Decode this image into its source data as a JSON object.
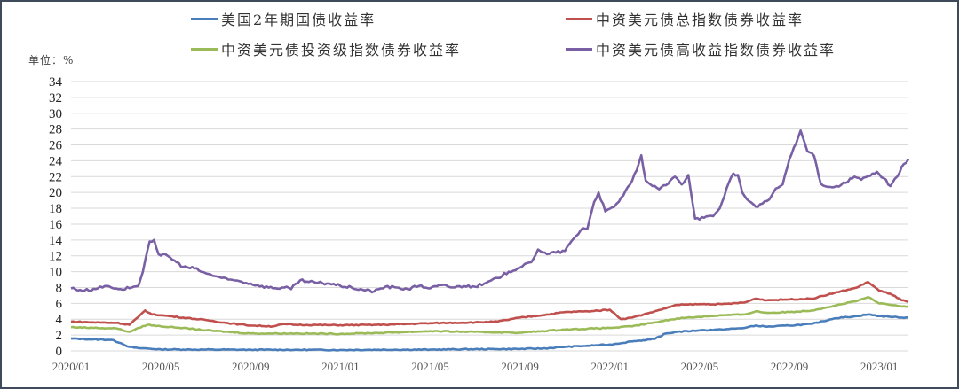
{
  "unit_label": "单位：%",
  "legend": [
    {
      "label": "美国2年期国债收益率",
      "color": "#4a7ebb"
    },
    {
      "label": "中资美元债总指数债券收益率",
      "color": "#c0504d"
    },
    {
      "label": "中资美元债投资级指数债券收益率",
      "color": "#9bbb59"
    },
    {
      "label": "中资美元债高收益指数债券收益率",
      "color": "#7960a4"
    }
  ],
  "chart_data": {
    "type": "line",
    "title": "",
    "xlabel": "",
    "ylabel": "单位：%",
    "ylim": [
      0,
      34
    ],
    "yticks": [
      0,
      2,
      4,
      6,
      8,
      10,
      12,
      14,
      16,
      18,
      20,
      22,
      24,
      26,
      28,
      30,
      32,
      34
    ],
    "xtick_labels": [
      "2020/01",
      "2020/05",
      "2020/09",
      "2021/01",
      "2021/05",
      "2021/09",
      "2022/01",
      "2022/05",
      "2022/09",
      "2023/01"
    ],
    "grid": "horizontal",
    "legend_position": "top",
    "x_unit": "months since 2020/01",
    "series": [
      {
        "name": "美国2年期国债收益率",
        "color": "#4a7ebb",
        "points": [
          [
            0,
            1.55
          ],
          [
            1,
            1.45
          ],
          [
            1.8,
            1.4
          ],
          [
            2.2,
            1.0
          ],
          [
            2.6,
            0.5
          ],
          [
            3,
            0.35
          ],
          [
            4,
            0.2
          ],
          [
            5,
            0.17
          ],
          [
            6,
            0.16
          ],
          [
            8,
            0.14
          ],
          [
            10,
            0.14
          ],
          [
            12,
            0.12
          ],
          [
            14,
            0.15
          ],
          [
            16,
            0.16
          ],
          [
            18,
            0.22
          ],
          [
            19,
            0.22
          ],
          [
            20,
            0.25
          ],
          [
            21,
            0.3
          ],
          [
            22,
            0.5
          ],
          [
            23,
            0.65
          ],
          [
            24,
            0.8
          ],
          [
            25,
            1.2
          ],
          [
            26,
            1.5
          ],
          [
            26.5,
            2.2
          ],
          [
            27,
            2.4
          ],
          [
            28,
            2.6
          ],
          [
            29,
            2.7
          ],
          [
            30,
            2.9
          ],
          [
            30.5,
            3.2
          ],
          [
            31,
            3.05
          ],
          [
            32,
            3.2
          ],
          [
            33,
            3.4
          ],
          [
            34,
            4.1
          ],
          [
            35,
            4.4
          ],
          [
            35.5,
            4.6
          ],
          [
            36,
            4.4
          ],
          [
            36.5,
            4.3
          ],
          [
            37,
            4.2
          ],
          [
            37.3,
            4.2
          ]
        ]
      },
      {
        "name": "中资美元债总指数债券收益率",
        "color": "#c0504d",
        "points": [
          [
            0,
            3.7
          ],
          [
            1,
            3.6
          ],
          [
            2,
            3.55
          ],
          [
            2.6,
            3.3
          ],
          [
            3,
            4.3
          ],
          [
            3.3,
            5.1
          ],
          [
            3.6,
            4.6
          ],
          [
            4,
            4.5
          ],
          [
            5,
            4.2
          ],
          [
            6,
            3.9
          ],
          [
            7,
            3.5
          ],
          [
            8,
            3.2
          ],
          [
            9,
            3.1
          ],
          [
            9.5,
            3.4
          ],
          [
            10,
            3.3
          ],
          [
            12,
            3.25
          ],
          [
            14,
            3.3
          ],
          [
            16,
            3.5
          ],
          [
            18,
            3.6
          ],
          [
            19,
            3.7
          ],
          [
            20,
            4.2
          ],
          [
            21,
            4.5
          ],
          [
            22,
            4.9
          ],
          [
            23,
            5.0
          ],
          [
            24,
            5.2
          ],
          [
            24.5,
            4.0
          ],
          [
            25,
            4.2
          ],
          [
            26,
            5.0
          ],
          [
            27,
            5.8
          ],
          [
            28,
            5.9
          ],
          [
            29,
            5.9
          ],
          [
            30,
            6.1
          ],
          [
            30.5,
            6.6
          ],
          [
            31,
            6.4
          ],
          [
            32,
            6.5
          ],
          [
            33,
            6.6
          ],
          [
            34,
            7.3
          ],
          [
            35,
            8.0
          ],
          [
            35.5,
            8.7
          ],
          [
            36,
            7.6
          ],
          [
            36.5,
            7.2
          ],
          [
            37,
            6.4
          ],
          [
            37.3,
            6.2
          ]
        ]
      },
      {
        "name": "中资美元债投资级指数债券收益率",
        "color": "#9bbb59",
        "points": [
          [
            0,
            3.0
          ],
          [
            1,
            2.9
          ],
          [
            2,
            2.85
          ],
          [
            2.6,
            2.4
          ],
          [
            3,
            2.9
          ],
          [
            3.4,
            3.3
          ],
          [
            4,
            3.1
          ],
          [
            5,
            2.9
          ],
          [
            6,
            2.6
          ],
          [
            7,
            2.4
          ],
          [
            8,
            2.2
          ],
          [
            10,
            2.2
          ],
          [
            12,
            2.15
          ],
          [
            14,
            2.3
          ],
          [
            16,
            2.5
          ],
          [
            18,
            2.4
          ],
          [
            20,
            2.3
          ],
          [
            21,
            2.5
          ],
          [
            22,
            2.7
          ],
          [
            23,
            2.8
          ],
          [
            24,
            2.9
          ],
          [
            25,
            3.1
          ],
          [
            26,
            3.6
          ],
          [
            27,
            4.1
          ],
          [
            28,
            4.3
          ],
          [
            29,
            4.5
          ],
          [
            30,
            4.6
          ],
          [
            30.5,
            5.0
          ],
          [
            31,
            4.8
          ],
          [
            32,
            4.9
          ],
          [
            33,
            5.1
          ],
          [
            34,
            5.7
          ],
          [
            35,
            6.3
          ],
          [
            35.5,
            6.8
          ],
          [
            36,
            6.0
          ],
          [
            36.5,
            5.8
          ],
          [
            37,
            5.6
          ],
          [
            37.3,
            5.6
          ]
        ]
      },
      {
        "name": "中资美元债高收益指数债券收益率",
        "color": "#7960a4",
        "points": [
          [
            0,
            7.9
          ],
          [
            0.6,
            7.6
          ],
          [
            1.2,
            7.9
          ],
          [
            1.6,
            8.2
          ],
          [
            2.2,
            7.8
          ],
          [
            2.7,
            8.0
          ],
          [
            3.0,
            8.2
          ],
          [
            3.2,
            10.0
          ],
          [
            3.5,
            13.8
          ],
          [
            3.7,
            14.0
          ],
          [
            3.9,
            12.2
          ],
          [
            4.3,
            12.0
          ],
          [
            4.7,
            11.2
          ],
          [
            5.0,
            10.6
          ],
          [
            5.5,
            10.4
          ],
          [
            6.0,
            9.8
          ],
          [
            6.5,
            9.4
          ],
          [
            7.0,
            9.0
          ],
          [
            7.5,
            8.8
          ],
          [
            8.0,
            8.5
          ],
          [
            8.5,
            8.2
          ],
          [
            9.0,
            7.9
          ],
          [
            9.5,
            8.0
          ],
          [
            9.8,
            7.8
          ],
          [
            10.2,
            8.9
          ],
          [
            10.6,
            8.7
          ],
          [
            11.0,
            8.6
          ],
          [
            11.5,
            8.5
          ],
          [
            12.0,
            8.2
          ],
          [
            12.5,
            8.0
          ],
          [
            13.0,
            7.7
          ],
          [
            13.5,
            7.5
          ],
          [
            14.0,
            8.1
          ],
          [
            14.5,
            8.0
          ],
          [
            15.0,
            7.8
          ],
          [
            15.5,
            8.2
          ],
          [
            16.0,
            7.9
          ],
          [
            16.5,
            8.3
          ],
          [
            17.0,
            8.0
          ],
          [
            17.5,
            8.2
          ],
          [
            18.0,
            8.1
          ],
          [
            18.5,
            8.6
          ],
          [
            19.0,
            9.2
          ],
          [
            19.5,
            10.0
          ],
          [
            20.0,
            10.5
          ],
          [
            20.5,
            11.2
          ],
          [
            20.8,
            12.8
          ],
          [
            21.2,
            12.2
          ],
          [
            21.6,
            12.4
          ],
          [
            22.0,
            12.6
          ],
          [
            22.4,
            14.2
          ],
          [
            22.8,
            15.5
          ],
          [
            23.0,
            15.4
          ],
          [
            23.3,
            18.8
          ],
          [
            23.5,
            20.0
          ],
          [
            23.8,
            17.6
          ],
          [
            24.2,
            18.2
          ],
          [
            24.6,
            19.6
          ],
          [
            24.9,
            21.0
          ],
          [
            25.2,
            22.8
          ],
          [
            25.4,
            24.7
          ],
          [
            25.6,
            21.5
          ],
          [
            25.9,
            20.8
          ],
          [
            26.2,
            20.4
          ],
          [
            26.6,
            21.1
          ],
          [
            26.9,
            22.0
          ],
          [
            27.2,
            21.0
          ],
          [
            27.5,
            22.2
          ],
          [
            27.8,
            16.7
          ],
          [
            28.2,
            16.8
          ],
          [
            28.6,
            17.0
          ],
          [
            28.9,
            18.0
          ],
          [
            29.2,
            20.5
          ],
          [
            29.5,
            22.4
          ],
          [
            29.7,
            22.2
          ],
          [
            29.9,
            20.0
          ],
          [
            30.2,
            18.9
          ],
          [
            30.5,
            18.2
          ],
          [
            30.8,
            18.6
          ],
          [
            31.1,
            19.1
          ],
          [
            31.4,
            20.5
          ],
          [
            31.7,
            21.0
          ],
          [
            32.0,
            24.2
          ],
          [
            32.3,
            26.2
          ],
          [
            32.5,
            27.8
          ],
          [
            32.8,
            25.2
          ],
          [
            33.1,
            24.6
          ],
          [
            33.4,
            21.1
          ],
          [
            33.7,
            20.7
          ],
          [
            34.1,
            20.8
          ],
          [
            34.5,
            21.2
          ],
          [
            34.9,
            22.0
          ],
          [
            35.2,
            21.6
          ],
          [
            35.6,
            22.1
          ],
          [
            35.9,
            22.6
          ],
          [
            36.2,
            21.8
          ],
          [
            36.5,
            20.8
          ],
          [
            36.8,
            22.0
          ],
          [
            37.1,
            23.6
          ],
          [
            37.3,
            24.2
          ]
        ]
      }
    ]
  }
}
